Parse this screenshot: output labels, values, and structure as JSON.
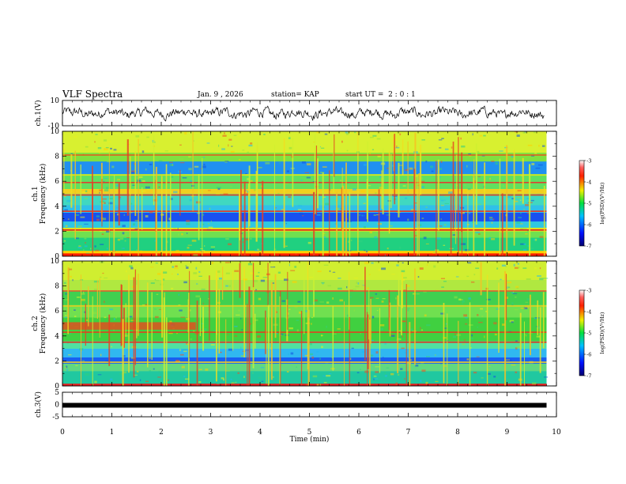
{
  "header": {
    "title": "VLF Spectra",
    "date": "Jan. 9 , 2026",
    "station": "station= KAP",
    "start_ut": "start UT =  2 : 0 : 1"
  },
  "chart_data": [
    {
      "type": "line",
      "name": "ch1-waveform",
      "ylabel": "ch.1(V)",
      "ylim": [
        -10,
        10
      ],
      "yticks": [
        "10",
        "-10"
      ],
      "xlim": [
        0,
        10
      ],
      "note": "noisy waveform oscillating roughly between -5 and +7 V"
    },
    {
      "type": "heatmap",
      "name": "ch1-spectrogram",
      "ylabel": "ch.1",
      "ylabel2": "Frequency (kHz)",
      "xlim": [
        0,
        10
      ],
      "ylim": [
        0,
        10
      ],
      "yticks": [
        "0",
        "2",
        "4",
        "6",
        "8",
        "10"
      ],
      "data_extent_min": 9.8,
      "bands": [
        {
          "f0": 0.0,
          "f1": 0.25,
          "color": "#ff2000"
        },
        {
          "f0": 0.25,
          "f1": 0.45,
          "color": "#ffd000"
        },
        {
          "f0": 0.45,
          "f1": 1.5,
          "color": "#20d080"
        },
        {
          "f0": 1.5,
          "f1": 2.0,
          "color": "#70e050"
        },
        {
          "f0": 2.0,
          "f1": 2.3,
          "color": "#e0e020"
        },
        {
          "f0": 2.3,
          "f1": 2.8,
          "color": "#30c8e0"
        },
        {
          "f0": 2.8,
          "f1": 3.5,
          "color": "#1850f0"
        },
        {
          "f0": 3.5,
          "f1": 4.1,
          "color": "#30c0e8"
        },
        {
          "f0": 4.1,
          "f1": 5.0,
          "color": "#40d8c0"
        },
        {
          "f0": 5.0,
          "f1": 5.4,
          "color": "#f0d020"
        },
        {
          "f0": 5.4,
          "f1": 6.6,
          "color": "#60e060"
        },
        {
          "f0": 6.6,
          "f1": 7.6,
          "color": "#2090f0"
        },
        {
          "f0": 7.6,
          "f1": 8.3,
          "color": "#80e040"
        },
        {
          "f0": 8.3,
          "f1": 10.0,
          "color": "#d8f030"
        }
      ],
      "lines": [
        {
          "f": 2.1,
          "color": "#e02020"
        },
        {
          "f": 3.6,
          "color": "#f03020"
        },
        {
          "f": 4.9,
          "color": "#e04020"
        },
        {
          "f": 5.9,
          "color": "#e04030"
        },
        {
          "f": 6.5,
          "color": "#e0e020"
        },
        {
          "f": 8.1,
          "color": "#e06020"
        }
      ],
      "colorbar": {
        "label": "log(PSD)(V²/Hz)",
        "range": [
          -7,
          -3
        ],
        "ticks": [
          "-3",
          "-4",
          "-5",
          "-6",
          "-7"
        ]
      }
    },
    {
      "type": "heatmap",
      "name": "ch2-spectrogram",
      "ylabel": "ch.2",
      "ylabel2": "Frequency (kHz)",
      "xlim": [
        0,
        10
      ],
      "ylim": [
        0,
        10
      ],
      "yticks": [
        "0",
        "2",
        "4",
        "6",
        "8",
        "10"
      ],
      "data_extent_min": 9.8,
      "bands": [
        {
          "f0": 0.0,
          "f1": 0.2,
          "color": "#e02020"
        },
        {
          "f0": 0.2,
          "f1": 1.2,
          "color": "#20c8a0"
        },
        {
          "f0": 1.2,
          "f1": 1.8,
          "color": "#60d880"
        },
        {
          "f0": 1.8,
          "f1": 2.3,
          "color": "#1860f0"
        },
        {
          "f0": 2.3,
          "f1": 3.0,
          "color": "#30b8f0"
        },
        {
          "f0": 3.0,
          "f1": 3.6,
          "color": "#50e0a0"
        },
        {
          "f0": 3.6,
          "f1": 5.5,
          "color": "#40d040"
        },
        {
          "f0": 5.5,
          "f1": 6.5,
          "color": "#70e050"
        },
        {
          "f0": 6.5,
          "f1": 7.6,
          "color": "#40d050"
        },
        {
          "f0": 7.6,
          "f1": 8.5,
          "color": "#b0e840"
        },
        {
          "f0": 8.5,
          "f1": 10.0,
          "color": "#d0ee30"
        }
      ],
      "lines": [
        {
          "f": 1.9,
          "color": "#f0d020"
        },
        {
          "f": 3.5,
          "color": "#e03020"
        },
        {
          "f": 4.3,
          "color": "#e04020"
        },
        {
          "f": 6.4,
          "color": "#e0d020"
        },
        {
          "f": 7.6,
          "color": "#e06030"
        }
      ],
      "events": [
        {
          "x0": 0.0,
          "x1": 2.7,
          "f0": 4.5,
          "f1": 5.1,
          "color": "#e05020"
        }
      ],
      "colorbar": {
        "label": "log(PSD)(V²/Hz)",
        "range": [
          -7,
          -3
        ],
        "ticks": [
          "-3",
          "-4",
          "-5",
          "-6",
          "-7"
        ]
      }
    },
    {
      "type": "line",
      "name": "ch3-waveform",
      "ylabel": "ch.3(V)",
      "ylim": [
        -5,
        5
      ],
      "yticks": [
        "5",
        "0",
        "-5"
      ],
      "xlim": [
        0,
        10
      ],
      "level": -0.3,
      "note": "nearly flat thick black trace just below 0 V"
    }
  ],
  "x_axis": {
    "label": "Time (min)",
    "range": [
      0,
      10
    ],
    "ticks": [
      "0",
      "1",
      "2",
      "3",
      "4",
      "5",
      "6",
      "7",
      "8",
      "9",
      "10"
    ]
  }
}
